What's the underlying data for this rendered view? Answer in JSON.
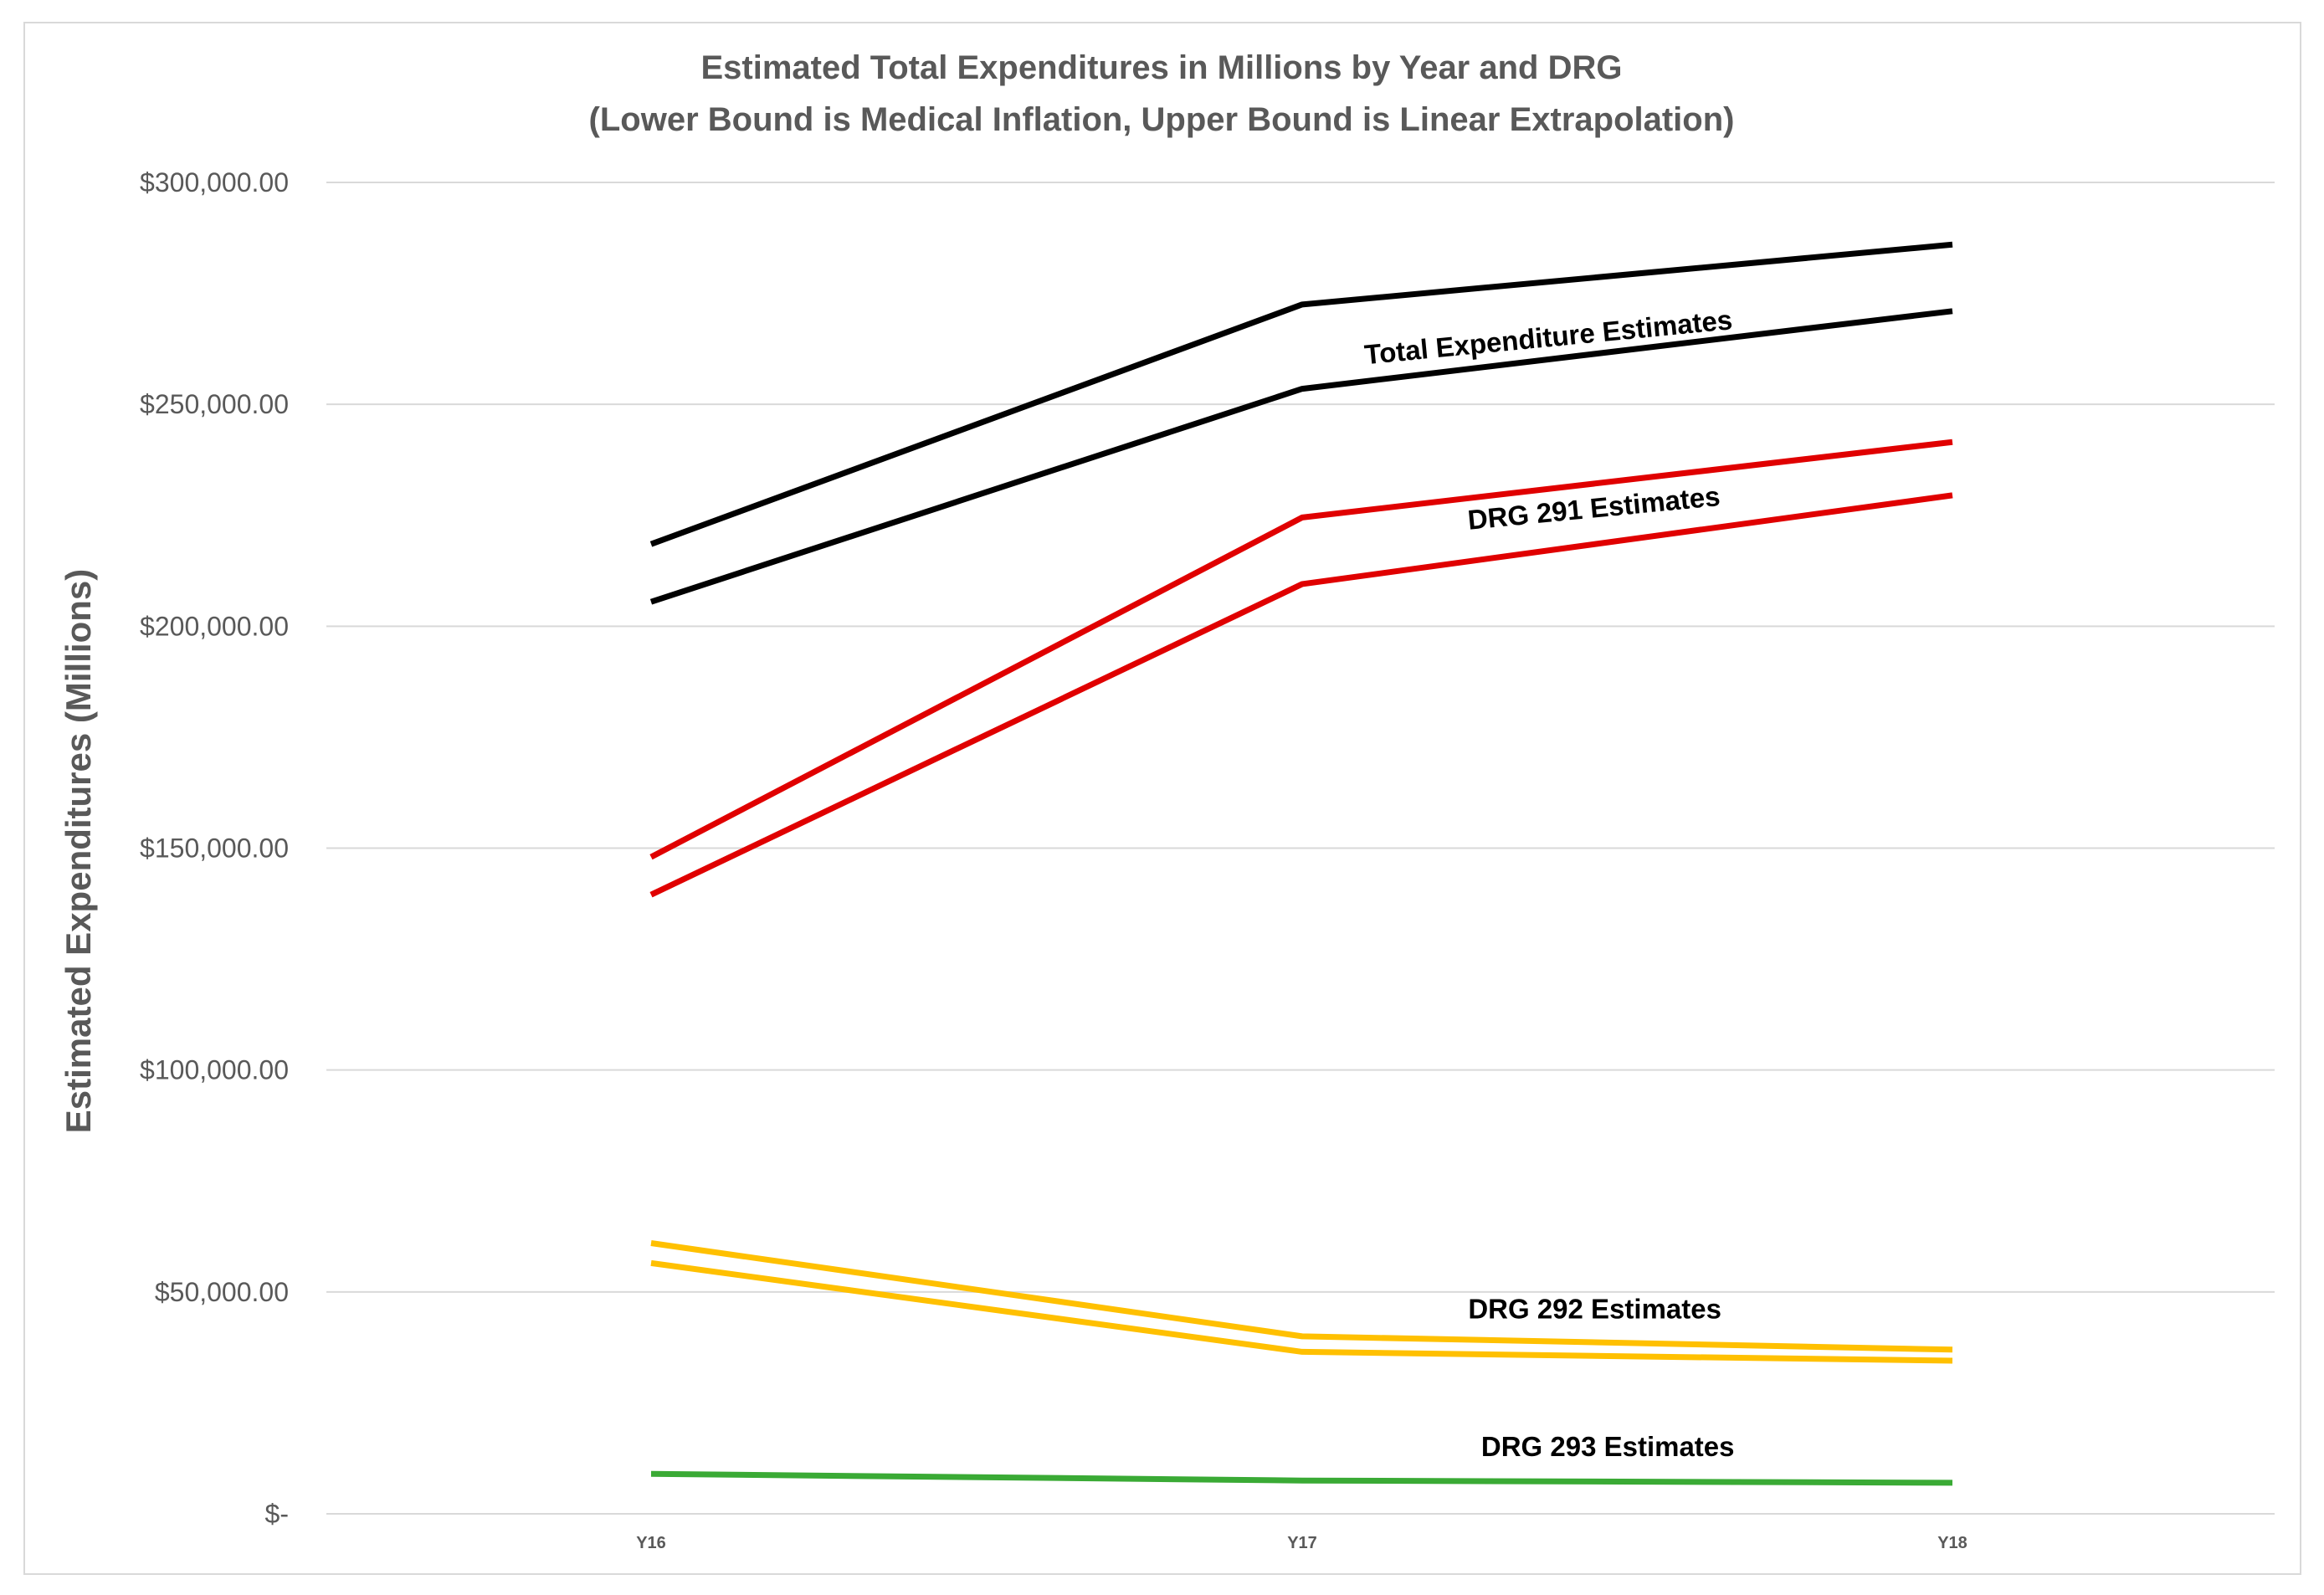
{
  "chart_data": {
    "type": "line",
    "title": "Estimated Total Expenditures in Millions by Year and DRG",
    "subtitle": "(Lower Bound is Medical Inflation, Upper Bound is Linear Extrapolation)",
    "xlabel": "",
    "ylabel": "Estimated Expenditures (Millions)",
    "categories": [
      "Y16",
      "Y17",
      "Y18"
    ],
    "ylim": [
      0,
      300000
    ],
    "yticks": [
      0,
      50000,
      100000,
      150000,
      200000,
      250000,
      300000
    ],
    "ytick_labels": [
      "$-",
      "$50,000.00",
      "$100,000.00",
      "$150,000.00",
      "$200,000.00",
      "$250,000.00",
      "$300,000.00"
    ],
    "grid": true,
    "series": [
      {
        "name": "Total Upper",
        "color": "#000000",
        "values": [
          218500,
          272500,
          286000
        ]
      },
      {
        "name": "Total Lower",
        "color": "#000000",
        "values": [
          205500,
          253500,
          271000
        ]
      },
      {
        "name": "DRG 291 Upper",
        "color": "#e00000",
        "values": [
          148000,
          224500,
          241500
        ]
      },
      {
        "name": "DRG 291 Lower",
        "color": "#e00000",
        "values": [
          139500,
          209500,
          229500
        ]
      },
      {
        "name": "DRG 292 Upper",
        "color": "#ffc000",
        "values": [
          61000,
          40000,
          37000
        ]
      },
      {
        "name": "DRG 292 Lower",
        "color": "#ffc000",
        "values": [
          56500,
          36500,
          34500
        ]
      },
      {
        "name": "DRG 293",
        "color": "#3aaa35",
        "values": [
          9000,
          7500,
          7000
        ]
      }
    ],
    "annotations": [
      {
        "text": "Total Expenditure Estimates",
        "x": 1.38,
        "y": 263000,
        "angle": -5.5
      },
      {
        "text": "DRG 291 Estimates",
        "x": 1.45,
        "y": 224500,
        "angle": -5.5
      },
      {
        "text": "DRG 292 Estimates",
        "x": 1.45,
        "y": 44000,
        "angle": 0
      },
      {
        "text": "DRG 293 Estimates",
        "x": 1.47,
        "y": 13000,
        "angle": 0
      }
    ]
  }
}
